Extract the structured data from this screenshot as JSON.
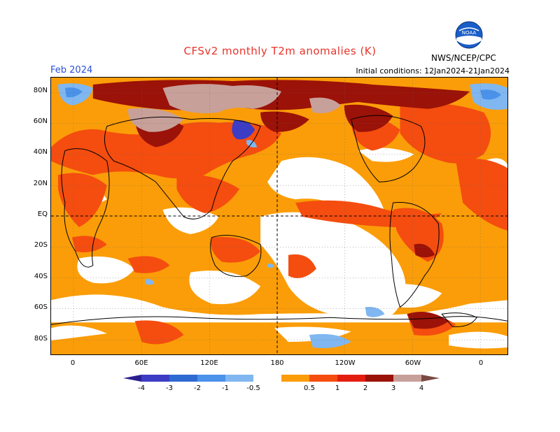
{
  "header": {
    "title": "CFSv2 monthly T2m anomalies (K)",
    "forecast_month": "Feb 2024",
    "initial_conditions": "Initial conditions: 12Jan2024-21Jan2024",
    "agency": "NWS/NCEP/CPC",
    "logo_text": "NOAA"
  },
  "map": {
    "lat_labels": [
      "80N",
      "60N",
      "40N",
      "20N",
      "EQ",
      "20S",
      "40S",
      "60S",
      "80S"
    ],
    "lon_labels": [
      "0",
      "60E",
      "120E",
      "180",
      "120W",
      "60W",
      "0"
    ]
  },
  "legend": {
    "tick_labels": [
      "-4",
      "-3",
      "-2",
      "-1",
      "-0.5",
      "0.5",
      "1",
      "2",
      "3",
      "4"
    ],
    "colors": [
      "#2b1f8f",
      "#3c3cc4",
      "#2f6ad2",
      "#4a92ea",
      "#80b7f0",
      "#ffffff",
      "#fb9d08",
      "#f44d0f",
      "#e31e10",
      "#9b1208",
      "#c8a09a",
      "#7a4a42"
    ]
  }
}
